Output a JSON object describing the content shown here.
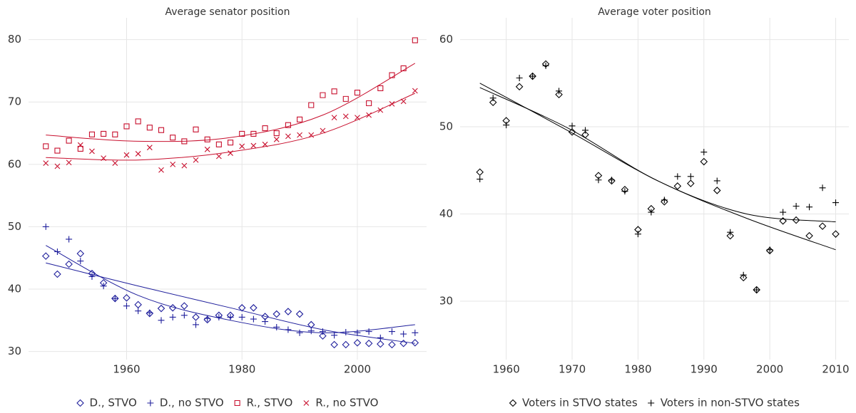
{
  "chart_data": [
    {
      "type": "scatter",
      "title": "Average senator position",
      "x": [
        1946,
        1948,
        1950,
        1952,
        1954,
        1956,
        1958,
        1960,
        1962,
        1964,
        1966,
        1968,
        1970,
        1972,
        1974,
        1976,
        1978,
        1980,
        1982,
        1984,
        1986,
        1988,
        1990,
        1992,
        1994,
        1996,
        1998,
        2000,
        2002,
        2004,
        2006,
        2008,
        2010
      ],
      "xlim": [
        1943,
        2012
      ],
      "xticks": [
        1960,
        1980,
        2000
      ],
      "ylim": [
        28.7,
        83.5
      ],
      "yticks": [
        30,
        40,
        50,
        60,
        70,
        80
      ],
      "grid": true,
      "legend": "bottom",
      "series": [
        {
          "name": "D., STVO",
          "color": "#1f1f9c",
          "marker": "diamond",
          "values": [
            45.3,
            42.4,
            44.0,
            45.7,
            42.5,
            41.0,
            38.5,
            38.6,
            37.5,
            36.1,
            36.9,
            37.0,
            37.3,
            35.5,
            35.1,
            35.8,
            35.8,
            37.0,
            37.0,
            35.6,
            36.0,
            36.4,
            36.0,
            34.3,
            32.5,
            31.1,
            31.1,
            31.4,
            31.3,
            31.2,
            31.1,
            31.3,
            31.4
          ],
          "fit": {
            "x": [
              1946,
              1962,
              1978,
              1994,
              2010
            ],
            "values": [
              44.2,
              40.5,
              37.0,
              33.5,
              31.3
            ]
          }
        },
        {
          "name": "D., no STVO",
          "color": "#1f1f9c",
          "marker": "plus",
          "values": [
            50.0,
            46.0,
            48.0,
            44.5,
            42.0,
            40.5,
            38.5,
            37.3,
            36.5,
            36.2,
            35.0,
            35.5,
            35.8,
            34.3,
            35.3,
            35.5,
            35.5,
            35.5,
            35.2,
            34.8,
            33.9,
            33.5,
            33.0,
            33.3,
            33.2,
            32.6,
            33.1,
            33.0,
            33.2,
            32.2,
            33.2,
            32.8,
            33.0
          ],
          "fit": {
            "x": [
              1946,
              1962,
              1978,
              1994,
              2010
            ],
            "values": [
              47.0,
              39.0,
              35.0,
              33.0,
              34.3
            ]
          }
        },
        {
          "name": "R., STVO",
          "color": "#c8102e",
          "marker": "square",
          "values": [
            62.9,
            62.2,
            63.8,
            62.5,
            64.8,
            64.9,
            64.8,
            66.1,
            66.9,
            65.9,
            65.5,
            64.3,
            63.7,
            65.6,
            64.0,
            63.2,
            63.5,
            64.9,
            64.9,
            65.8,
            65.0,
            66.3,
            67.2,
            69.5,
            71.1,
            71.7,
            70.5,
            71.5,
            69.8,
            72.2,
            74.3,
            75.4,
            79.9
          ],
          "fit": {
            "x": [
              1946,
              1962,
              1978,
              1994,
              2010
            ],
            "values": [
              64.7,
              63.7,
              64.3,
              67.9,
              76.2
            ]
          }
        },
        {
          "name": "R., no STVO",
          "color": "#c8102e",
          "marker": "x",
          "values": [
            60.2,
            59.7,
            60.3,
            63.1,
            62.1,
            61.0,
            60.2,
            61.5,
            61.7,
            62.7,
            59.1,
            60.0,
            59.8,
            60.7,
            62.4,
            61.3,
            61.8,
            62.9,
            63.0,
            63.2,
            64.0,
            64.5,
            64.7,
            64.7,
            65.4,
            67.5,
            67.7,
            67.5,
            67.9,
            68.7,
            69.7,
            70.1,
            71.8
          ],
          "fit": {
            "x": [
              1946,
              1962,
              1978,
              1994,
              2010
            ],
            "values": [
              61.1,
              60.7,
              62.0,
              65.0,
              71.4
            ]
          }
        }
      ]
    },
    {
      "type": "scatter",
      "title": "Average voter position",
      "x": [
        1956,
        1958,
        1960,
        1962,
        1964,
        1966,
        1968,
        1970,
        1972,
        1974,
        1976,
        1978,
        1980,
        1982,
        1984,
        1986,
        1988,
        1990,
        1992,
        1994,
        1996,
        1998,
        2000,
        2002,
        2004,
        2006,
        2008,
        2010
      ],
      "xlim": [
        1953,
        2012
      ],
      "xticks": [
        1960,
        1970,
        1980,
        1990,
        2000,
        2010
      ],
      "ylim": [
        23.3,
        62.5
      ],
      "yticks": [
        30,
        40,
        50,
        60
      ],
      "grid": true,
      "legend": "bottom",
      "series": [
        {
          "name": "Voters in STVO states",
          "color": "#000000",
          "marker": "diamond",
          "values": [
            44.8,
            52.8,
            50.7,
            54.6,
            55.8,
            57.2,
            53.7,
            49.4,
            49.1,
            44.4,
            43.8,
            42.8,
            38.2,
            40.6,
            41.4,
            43.2,
            43.5,
            46.0,
            42.7,
            37.5,
            32.7,
            31.3,
            35.8,
            39.2,
            39.3,
            37.5,
            38.6,
            37.7
          ],
          "fit": {
            "x": [
              1956,
              1969.5,
              1983,
              1996.5,
              2010
            ],
            "values": [
              55.0,
              49.5,
              43.8,
              39.5,
              35.9
            ]
          }
        },
        {
          "name": "Voters in non-STVO states",
          "color": "#000000",
          "marker": "plus",
          "values": [
            44.0,
            53.3,
            50.2,
            55.6,
            55.8,
            57.0,
            54.1,
            50.1,
            49.6,
            43.9,
            43.9,
            42.6,
            37.7,
            40.2,
            41.6,
            44.3,
            44.3,
            47.1,
            43.8,
            37.9,
            33.0,
            31.3,
            35.9,
            40.2,
            40.9,
            40.8,
            43.0,
            41.3
          ],
          "fit": {
            "x": [
              1956,
              1969.5,
              1983,
              1996.5,
              2010
            ],
            "values": [
              54.5,
              49.8,
              43.8,
              40.0,
              39.1
            ]
          }
        }
      ]
    }
  ]
}
